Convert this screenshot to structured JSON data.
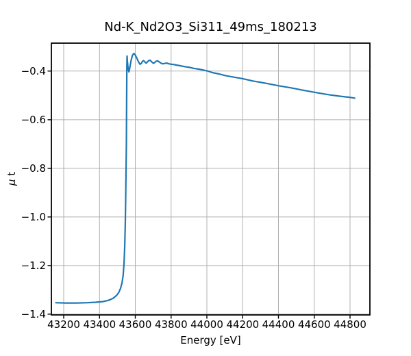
{
  "chart_data": {
    "type": "line",
    "title": "Nd-K_Nd2O3_Si311_49ms_180213",
    "xlabel": "Energy [eV]",
    "ylabel": "μ t",
    "ylabel_parts": [
      "μ",
      " t"
    ],
    "xlim": [
      43131,
      44911
    ],
    "ylim": [
      -1.403,
      -0.285
    ],
    "x_ticks": [
      43200,
      43400,
      43600,
      43800,
      44000,
      44200,
      44400,
      44600,
      44800
    ],
    "x_tick_labels": [
      "43200",
      "43400",
      "43600",
      "43800",
      "44000",
      "44200",
      "44400",
      "44600",
      "44800"
    ],
    "y_ticks": [
      -0.4,
      -0.6,
      -0.8,
      -1.0,
      -1.2,
      -1.4
    ],
    "y_tick_labels": [
      "−0.4",
      "−0.6",
      "−0.8",
      "−1.0",
      "−1.2",
      "−1.4"
    ],
    "grid": true,
    "legend": false,
    "line_color": "#1f77b4",
    "grid_color": "#b0b0b0",
    "spine_color": "#000000",
    "series": [
      {
        "name": "mu_t_absorption",
        "points": [
          [
            43156,
            -1.353
          ],
          [
            43210,
            -1.354
          ],
          [
            43270,
            -1.354
          ],
          [
            43330,
            -1.353
          ],
          [
            43380,
            -1.351
          ],
          [
            43420,
            -1.348
          ],
          [
            43450,
            -1.343
          ],
          [
            43475,
            -1.335
          ],
          [
            43495,
            -1.323
          ],
          [
            43508,
            -1.31
          ],
          [
            43518,
            -1.293
          ],
          [
            43526,
            -1.27
          ],
          [
            43532,
            -1.24
          ],
          [
            43537,
            -1.19
          ],
          [
            43541,
            -1.12
          ],
          [
            43544,
            -1.03
          ],
          [
            43546,
            -0.94
          ],
          [
            43548,
            -0.83
          ],
          [
            43550,
            -0.7
          ],
          [
            43551,
            -0.6
          ],
          [
            43552,
            -0.47
          ],
          [
            43553,
            -0.38
          ],
          [
            43554,
            -0.338
          ],
          [
            43556,
            -0.36
          ],
          [
            43559,
            -0.383
          ],
          [
            43562,
            -0.398
          ],
          [
            43564,
            -0.403
          ],
          [
            43567,
            -0.396
          ],
          [
            43572,
            -0.374
          ],
          [
            43578,
            -0.351
          ],
          [
            43584,
            -0.336
          ],
          [
            43590,
            -0.329
          ],
          [
            43594,
            -0.328
          ],
          [
            43600,
            -0.334
          ],
          [
            43607,
            -0.344
          ],
          [
            43614,
            -0.356
          ],
          [
            43621,
            -0.366
          ],
          [
            43627,
            -0.372
          ],
          [
            43634,
            -0.368
          ],
          [
            43640,
            -0.36
          ],
          [
            43646,
            -0.357
          ],
          [
            43652,
            -0.361
          ],
          [
            43658,
            -0.366
          ],
          [
            43662,
            -0.367
          ],
          [
            43668,
            -0.362
          ],
          [
            43675,
            -0.357
          ],
          [
            43682,
            -0.355
          ],
          [
            43689,
            -0.36
          ],
          [
            43696,
            -0.365
          ],
          [
            43702,
            -0.368
          ],
          [
            43709,
            -0.364
          ],
          [
            43717,
            -0.359
          ],
          [
            43725,
            -0.358
          ],
          [
            43733,
            -0.362
          ],
          [
            43743,
            -0.367
          ],
          [
            43752,
            -0.37
          ],
          [
            43762,
            -0.369
          ],
          [
            43775,
            -0.367
          ],
          [
            43788,
            -0.37
          ],
          [
            43802,
            -0.372
          ],
          [
            43815,
            -0.373
          ],
          [
            43828,
            -0.375
          ],
          [
            43851,
            -0.378
          ],
          [
            43878,
            -0.382
          ],
          [
            43905,
            -0.385
          ],
          [
            43928,
            -0.389
          ],
          [
            43955,
            -0.392
          ],
          [
            43982,
            -0.396
          ],
          [
            44006,
            -0.4
          ],
          [
            44030,
            -0.406
          ],
          [
            44068,
            -0.412
          ],
          [
            44106,
            -0.419
          ],
          [
            44145,
            -0.424
          ],
          [
            44198,
            -0.431
          ],
          [
            44259,
            -0.441
          ],
          [
            44336,
            -0.451
          ],
          [
            44397,
            -0.46
          ],
          [
            44470,
            -0.469
          ],
          [
            44546,
            -0.48
          ],
          [
            44623,
            -0.49
          ],
          [
            44680,
            -0.497
          ],
          [
            44738,
            -0.503
          ],
          [
            44799,
            -0.508
          ],
          [
            44826,
            -0.511
          ]
        ]
      }
    ]
  }
}
